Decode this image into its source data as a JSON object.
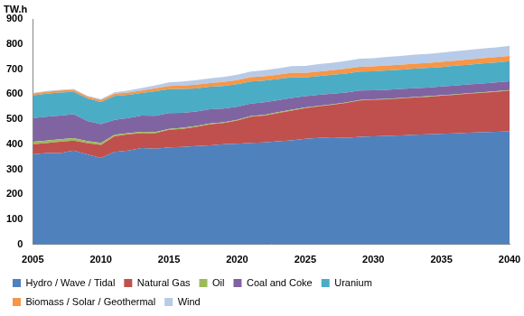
{
  "chart_data": {
    "type": "area",
    "stacked": true,
    "y_label": "TW.h",
    "x": [
      2005,
      2006,
      2007,
      2008,
      2009,
      2010,
      2011,
      2012,
      2013,
      2014,
      2015,
      2016,
      2017,
      2018,
      2019,
      2020,
      2021,
      2022,
      2023,
      2024,
      2025,
      2026,
      2027,
      2028,
      2029,
      2030,
      2031,
      2032,
      2033,
      2034,
      2035,
      2036,
      2037,
      2038,
      2039,
      2040
    ],
    "xlim": [
      2005,
      2040
    ],
    "xticks": [
      2005,
      2010,
      2015,
      2020,
      2025,
      2030,
      2035,
      2040
    ],
    "ylim": [
      0,
      900
    ],
    "yticks": [
      0,
      100,
      200,
      300,
      400,
      500,
      600,
      700,
      800,
      900
    ],
    "grid": false,
    "legend": "bottom",
    "series": [
      {
        "name": "Hydro / Wave / Tidal",
        "color": "#4f81bd",
        "values": [
          360,
          365,
          365,
          375,
          360,
          345,
          370,
          375,
          385,
          382,
          388,
          390,
          393,
          396,
          400,
          402,
          406,
          408,
          412,
          416,
          422,
          426,
          428,
          426,
          430,
          432,
          434,
          436,
          438,
          440,
          442,
          444,
          446,
          448,
          450,
          452
        ]
      },
      {
        "name": "Natural Gas",
        "color": "#c0504d",
        "values": [
          40,
          40,
          45,
          40,
          45,
          53,
          62,
          65,
          60,
          63,
          70,
          72,
          77,
          84,
          85,
          93,
          104,
          107,
          113,
          119,
          123,
          126,
          130,
          139,
          145,
          146,
          146,
          147,
          149,
          150,
          152,
          154,
          156,
          158,
          160,
          163
        ]
      },
      {
        "name": "Oil",
        "color": "#9bbb59",
        "values": [
          10,
          10,
          10,
          10,
          8,
          8,
          6,
          5,
          5,
          4,
          4,
          4,
          3,
          3,
          3,
          3,
          3,
          3,
          3,
          3,
          2,
          2,
          2,
          2,
          2,
          2,
          2,
          2,
          2,
          2,
          2,
          2,
          2,
          2,
          2,
          2
        ]
      },
      {
        "name": "Coal and Coke",
        "color": "#8064a2",
        "values": [
          95,
          95,
          95,
          95,
          80,
          75,
          60,
          60,
          65,
          65,
          63,
          60,
          58,
          57,
          55,
          52,
          50,
          50,
          48,
          47,
          45,
          44,
          42,
          40,
          38,
          36,
          36,
          36,
          35,
          35,
          35,
          35,
          35,
          35,
          35,
          35
        ]
      },
      {
        "name": "Uranium",
        "color": "#4bacc6",
        "values": [
          90,
          92,
          92,
          90,
          90,
          88,
          95,
          93,
          90,
          98,
          95,
          95,
          92,
          90,
          90,
          90,
          88,
          87,
          85,
          83,
          75,
          75,
          76,
          76,
          76,
          76,
          77,
          77,
          78,
          78,
          78,
          79,
          79,
          80,
          80,
          80
        ]
      },
      {
        "name": "Biomass / Solar / Geothermal",
        "color": "#f79646",
        "values": [
          8,
          8,
          8,
          8,
          8,
          8,
          9,
          9,
          10,
          12,
          13,
          14,
          15,
          15,
          16,
          16,
          17,
          17,
          17,
          18,
          18,
          18,
          18,
          19,
          19,
          19,
          20,
          20,
          20,
          20,
          20,
          20,
          21,
          21,
          21,
          21
        ]
      },
      {
        "name": "Wind",
        "color": "#b7cbe8",
        "values": [
          2,
          3,
          3,
          3,
          3,
          4,
          6,
          8,
          10,
          12,
          14,
          16,
          18,
          19,
          20,
          22,
          23,
          24,
          25,
          26,
          28,
          29,
          30,
          31,
          32,
          33,
          34,
          35,
          36,
          36,
          37,
          38,
          38,
          39,
          39,
          40
        ]
      }
    ]
  }
}
